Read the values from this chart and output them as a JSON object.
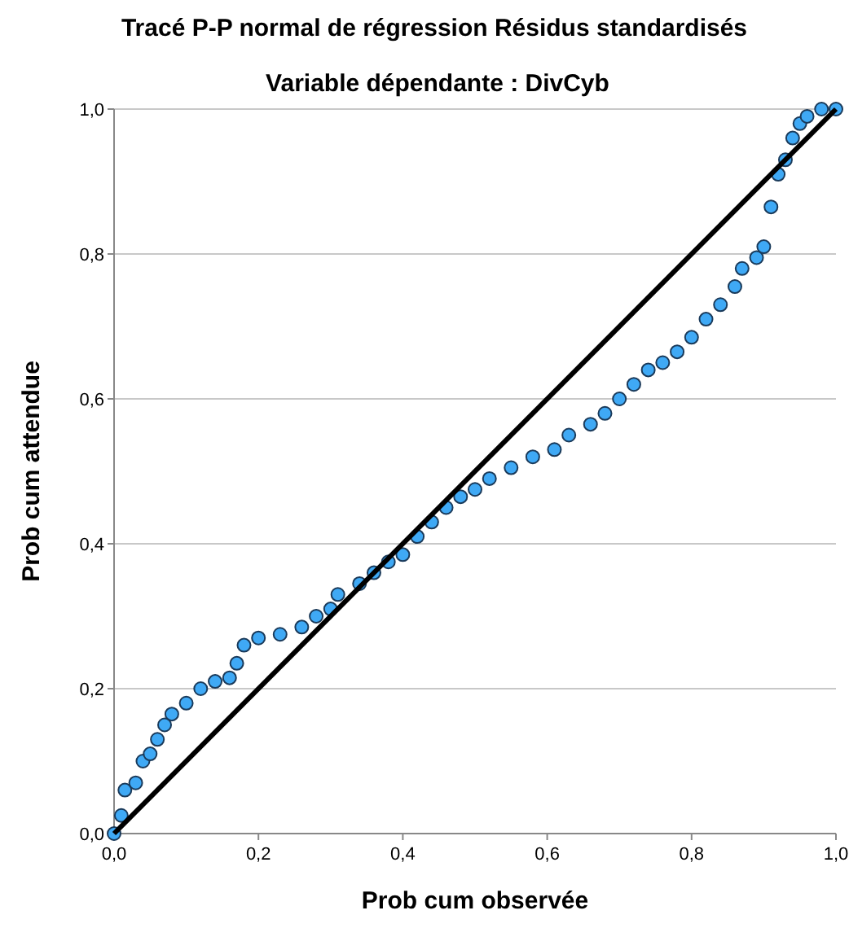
{
  "chart_data": {
    "type": "scatter",
    "title": "Tracé P-P normal de régression Résidus standardisés",
    "subtitle": "Variable dépendante : DivCyb",
    "xlabel": "Prob cum observée",
    "ylabel": "Prob cum attendue",
    "xlim": [
      0,
      1
    ],
    "ylim": [
      0,
      1
    ],
    "xticks": [
      {
        "value": 0,
        "label": "0,0"
      },
      {
        "value": 0.2,
        "label": "0,2"
      },
      {
        "value": 0.4,
        "label": "0,4"
      },
      {
        "value": 0.6,
        "label": "0,6"
      },
      {
        "value": 0.8,
        "label": "0,8"
      },
      {
        "value": 1,
        "label": "1,0"
      }
    ],
    "yticks": [
      {
        "value": 0,
        "label": "0,0"
      },
      {
        "value": 0.2,
        "label": "0,2"
      },
      {
        "value": 0.4,
        "label": "0,4"
      },
      {
        "value": 0.6,
        "label": "0,6"
      },
      {
        "value": 0.8,
        "label": "0,8"
      },
      {
        "value": 1,
        "label": "1,0"
      }
    ],
    "grid": "y",
    "series": [
      {
        "color": "#3fa9f5",
        "marker": "circle",
        "x": [
          0,
          0.01,
          0.015,
          0.03,
          0.04,
          0.05,
          0.06,
          0.07,
          0.08,
          0.1,
          0.12,
          0.14,
          0.16,
          0.17,
          0.18,
          0.2,
          0.23,
          0.26,
          0.28,
          0.3,
          0.31,
          0.34,
          0.36,
          0.38,
          0.4,
          0.42,
          0.44,
          0.46,
          0.48,
          0.5,
          0.52,
          0.55,
          0.58,
          0.61,
          0.63,
          0.66,
          0.68,
          0.7,
          0.72,
          0.74,
          0.76,
          0.78,
          0.8,
          0.82,
          0.84,
          0.86,
          0.87,
          0.89,
          0.9,
          0.91,
          0.92,
          0.93,
          0.94,
          0.95,
          0.96,
          0.98,
          1
        ],
        "values": [
          0,
          0.025,
          0.06,
          0.07,
          0.1,
          0.11,
          0.13,
          0.15,
          0.165,
          0.18,
          0.2,
          0.21,
          0.215,
          0.235,
          0.26,
          0.27,
          0.275,
          0.285,
          0.3,
          0.31,
          0.33,
          0.345,
          0.36,
          0.375,
          0.385,
          0.41,
          0.43,
          0.45,
          0.465,
          0.475,
          0.49,
          0.505,
          0.52,
          0.53,
          0.55,
          0.565,
          0.58,
          0.6,
          0.62,
          0.64,
          0.65,
          0.665,
          0.685,
          0.71,
          0.73,
          0.755,
          0.78,
          0.795,
          0.81,
          0.865,
          0.91,
          0.93,
          0.96,
          0.98,
          0.99,
          1,
          1
        ]
      },
      {
        "type": "line",
        "color": "#000000",
        "x": [
          0,
          1
        ],
        "values": [
          0,
          1
        ],
        "marker": "none"
      }
    ]
  }
}
